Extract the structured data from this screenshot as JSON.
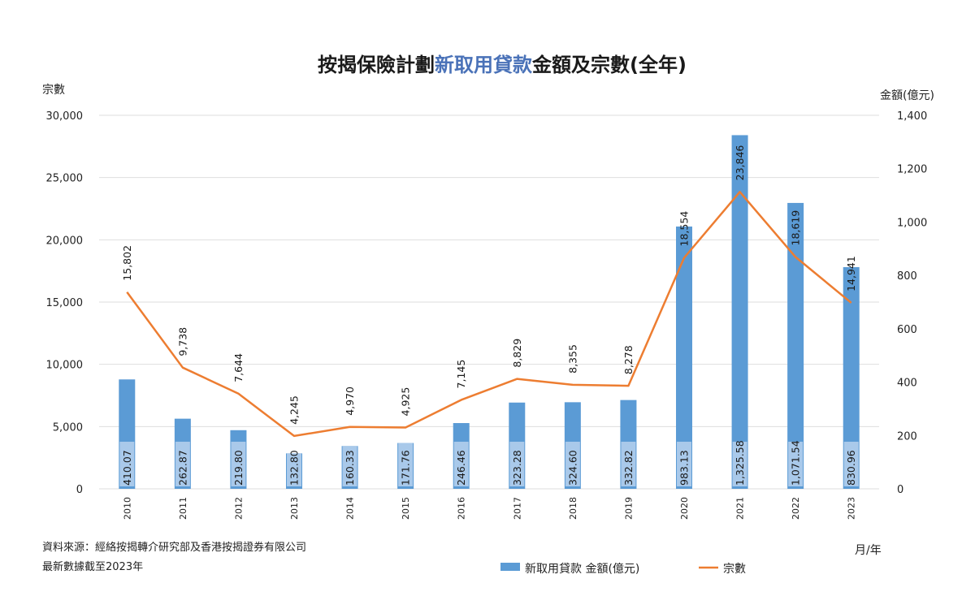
{
  "chart_data": {
    "type": "bar",
    "title_parts": [
      {
        "text": "按揭保險計劃",
        "highlight": false
      },
      {
        "text": "新取用貸款",
        "highlight": true
      },
      {
        "text": "金額及宗數(全年)",
        "highlight": false
      }
    ],
    "categories": [
      "2010",
      "2011",
      "2012",
      "2013",
      "2014",
      "2015",
      "2016",
      "2017",
      "2018",
      "2019",
      "2020",
      "2021",
      "2022",
      "2023"
    ],
    "series": [
      {
        "name": "新取用貸款 金額(億元)",
        "type": "bar",
        "axis": "right",
        "color": "#5b9bd5",
        "inner_color": "#a9c9ea",
        "values": [
          410.07,
          262.87,
          219.8,
          132.8,
          160.33,
          171.76,
          246.46,
          323.28,
          324.6,
          332.82,
          983.13,
          1325.58,
          1071.54,
          830.96
        ],
        "labels": [
          "410.07",
          "262.87",
          "219.80",
          "132.80",
          "160.33",
          "171.76",
          "246.46",
          "323.28",
          "324.60",
          "332.82",
          "983.13",
          "1,325.58",
          "1,071.54",
          "830.96"
        ]
      },
      {
        "name": "宗數",
        "type": "line",
        "axis": "left",
        "color": "#ed7d31",
        "values": [
          15802,
          9738,
          7644,
          4245,
          4970,
          4925,
          7145,
          8829,
          8355,
          8278,
          18554,
          23846,
          18619,
          14941
        ],
        "labels": [
          "15,802",
          "9,738",
          "7,644",
          "4,245",
          "4,970",
          "4,925",
          "7,145",
          "8,829",
          "8,355",
          "8,278",
          "18,554",
          "23,846",
          "18,619",
          "14,941"
        ]
      }
    ],
    "y_left": {
      "label": "宗數",
      "ylim": [
        0,
        30000
      ],
      "ticks": [
        0,
        5000,
        10000,
        15000,
        20000,
        25000,
        30000
      ],
      "tick_labels": [
        "0",
        "5,000",
        "10,000",
        "15,000",
        "20,000",
        "25,000",
        "30,000"
      ]
    },
    "y_right": {
      "label": "金額(億元)",
      "ylim": [
        0,
        1400
      ],
      "ticks": [
        0,
        200,
        400,
        600,
        800,
        1000,
        1200,
        1400
      ],
      "tick_labels": [
        "0",
        "200",
        "400",
        "600",
        "800",
        "1,000",
        "1,200",
        "1,400"
      ]
    },
    "x_unit_label": "月/年",
    "grid": true,
    "legend_position": "bottom"
  },
  "notes": {
    "source": "資料來源：經絡按揭轉介研究部及香港按揭證券有限公司",
    "latest": "最新數據截至2023年"
  }
}
